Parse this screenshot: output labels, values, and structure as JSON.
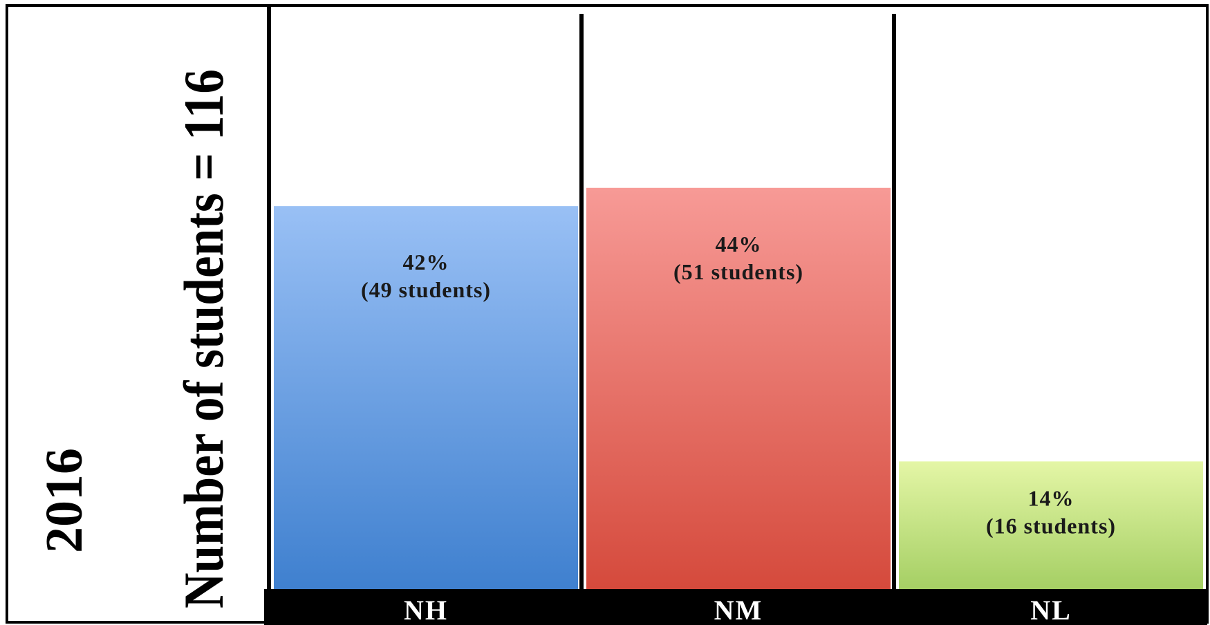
{
  "chart_data": {
    "type": "bar",
    "year_label": "2016",
    "ylabel": "Number of students = 116",
    "categories": [
      "NH",
      "NM",
      "NL"
    ],
    "values": [
      42,
      44,
      14
    ],
    "students": [
      49,
      51,
      16
    ],
    "percent_labels": [
      "42%",
      "44%",
      "14%"
    ],
    "count_labels": [
      "(49 students)",
      "(51 students)",
      "(16 students)"
    ],
    "ylim": [
      0,
      64
    ],
    "colors": [
      {
        "top": "#99c0f5",
        "bottom": "#3f80cf"
      },
      {
        "top": "#f79a96",
        "bottom": "#d54a3c"
      },
      {
        "top": "#e4f6a6",
        "bottom": "#a5cf64"
      }
    ]
  }
}
